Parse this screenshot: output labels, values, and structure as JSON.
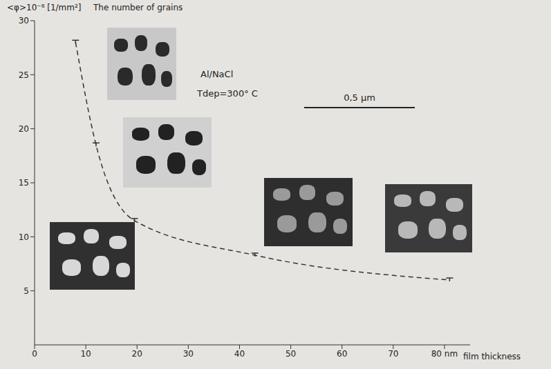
{
  "chart_data": {
    "type": "line",
    "title": "The number of grains",
    "y_label": "<φ>10⁻⁸ [1/mm²]",
    "x_label": "film thickness",
    "annotations": [
      "Al/NaCl",
      "Tdep=300° C",
      "0,5 µm"
    ],
    "x": [
      8,
      12,
      19.5,
      43,
      81
    ],
    "values": [
      28,
      18.5,
      11.5,
      8.3,
      6
    ],
    "color": "#333333",
    "line_style": "dashed",
    "marker": "dash",
    "xlim": [
      0,
      85
    ],
    "xticks": [
      0,
      10,
      20,
      30,
      40,
      50,
      60,
      70,
      {
        "value": 80,
        "label": "80 nm"
      }
    ],
    "ylim": [
      0,
      30
    ],
    "yticks": [
      5,
      10,
      15,
      20,
      25,
      30
    ],
    "grid": false
  }
}
